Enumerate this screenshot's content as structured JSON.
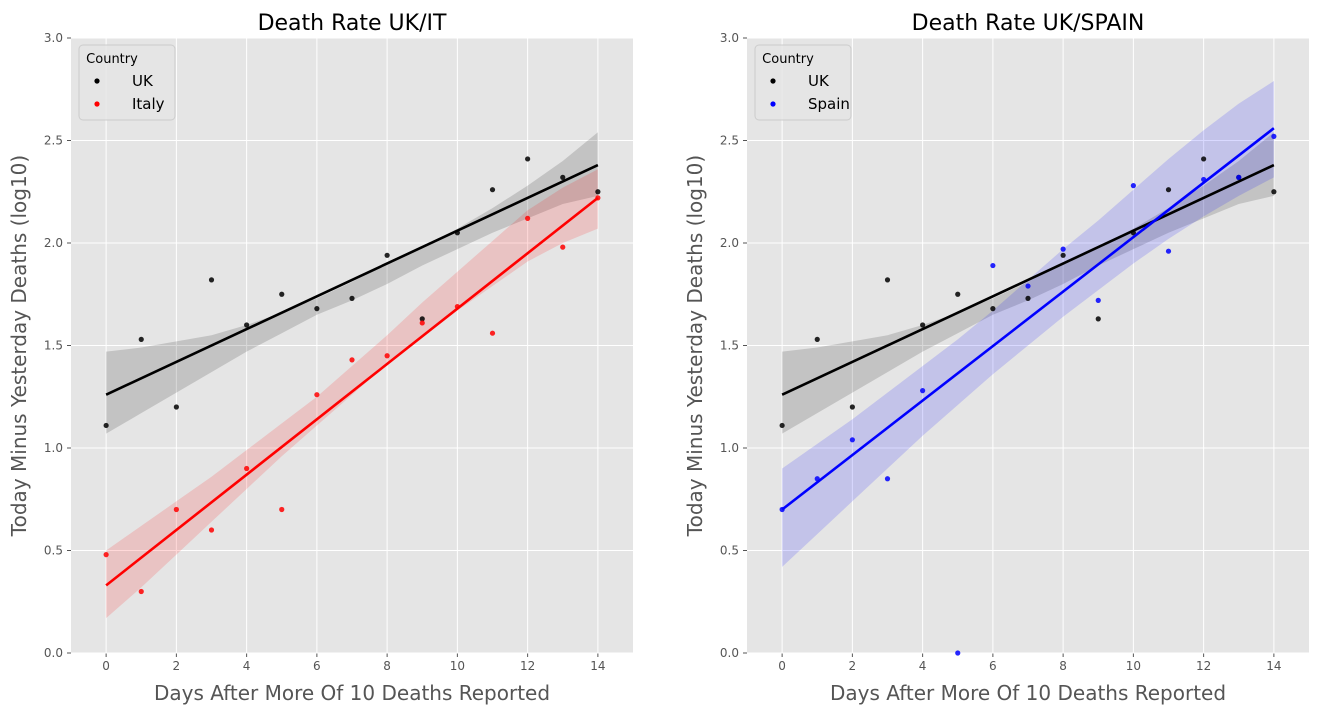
{
  "chart_data": [
    {
      "type": "scatter",
      "title": "Death Rate UK/IT",
      "xlabel": "Days After More Of 10 Deaths Reported",
      "ylabel": "Today Minus Yesterday Deaths (log10)",
      "xlim": [
        -1,
        15
      ],
      "ylim": [
        0,
        3
      ],
      "xticks": [
        "0",
        "2",
        "4",
        "6",
        "8",
        "10",
        "12",
        "14"
      ],
      "yticks": [
        "0.0",
        "0.5",
        "1.0",
        "1.5",
        "2.0",
        "2.5",
        "3.0"
      ],
      "grid": true,
      "legend": {
        "title": "Country",
        "position": "top-left"
      },
      "series": [
        {
          "name": "UK",
          "color": "#000000",
          "band_color": "#000000",
          "x": [
            0,
            1,
            2,
            3,
            4,
            5,
            6,
            7,
            8,
            9,
            10,
            11,
            12,
            13,
            14
          ],
          "y": [
            1.11,
            1.53,
            1.2,
            1.82,
            1.6,
            1.75,
            1.68,
            1.73,
            1.94,
            1.63,
            2.05,
            2.26,
            2.41,
            2.32,
            2.25
          ],
          "fit": {
            "start": 1.26,
            "end": 2.38
          },
          "band_lower": [
            1.07,
            1.17,
            1.27,
            1.37,
            1.47,
            1.56,
            1.65,
            1.72,
            1.8,
            1.89,
            1.97,
            2.05,
            2.12,
            2.19,
            2.23
          ],
          "band_upper": [
            1.47,
            1.49,
            1.52,
            1.55,
            1.6,
            1.66,
            1.73,
            1.81,
            1.9,
            1.98,
            2.07,
            2.17,
            2.28,
            2.4,
            2.54
          ]
        },
        {
          "name": "Italy",
          "color": "#ff0000",
          "band_color": "#ff0000",
          "x": [
            0,
            1,
            2,
            3,
            4,
            5,
            6,
            7,
            8,
            9,
            10,
            11,
            12,
            13,
            14
          ],
          "y": [
            0.48,
            0.3,
            0.7,
            0.6,
            0.9,
            0.7,
            1.26,
            1.43,
            1.45,
            1.61,
            1.69,
            1.56,
            2.12,
            1.98,
            2.22
          ],
          "fit": {
            "start": 0.33,
            "end": 2.22
          },
          "band_lower": [
            0.17,
            0.32,
            0.48,
            0.64,
            0.8,
            0.96,
            1.11,
            1.26,
            1.41,
            1.54,
            1.67,
            1.79,
            1.91,
            2.0,
            2.07
          ],
          "band_upper": [
            0.5,
            0.62,
            0.74,
            0.86,
            0.99,
            1.12,
            1.25,
            1.4,
            1.55,
            1.71,
            1.86,
            2.01,
            2.16,
            2.27,
            2.36
          ]
        }
      ]
    },
    {
      "type": "scatter",
      "title": "Death Rate UK/SPAIN",
      "xlabel": "Days After More Of 10 Deaths Reported",
      "ylabel": "Today Minus Yesterday Deaths (log10)",
      "xlim": [
        -1,
        15
      ],
      "ylim": [
        0,
        3
      ],
      "xticks": [
        "0",
        "2",
        "4",
        "6",
        "8",
        "10",
        "12",
        "14"
      ],
      "yticks": [
        "0.0",
        "0.5",
        "1.0",
        "1.5",
        "2.0",
        "2.5",
        "3.0"
      ],
      "grid": true,
      "legend": {
        "title": "Country",
        "position": "top-left"
      },
      "series": [
        {
          "name": "UK",
          "color": "#000000",
          "band_color": "#000000",
          "x": [
            0,
            1,
            2,
            3,
            4,
            5,
            6,
            7,
            8,
            9,
            10,
            11,
            12,
            13,
            14
          ],
          "y": [
            1.11,
            1.53,
            1.2,
            1.82,
            1.6,
            1.75,
            1.68,
            1.73,
            1.94,
            1.63,
            2.05,
            2.26,
            2.41,
            2.32,
            2.25
          ],
          "fit": {
            "start": 1.26,
            "end": 2.38
          },
          "band_lower": [
            1.07,
            1.17,
            1.27,
            1.37,
            1.47,
            1.56,
            1.65,
            1.72,
            1.8,
            1.89,
            1.97,
            2.05,
            2.12,
            2.19,
            2.23
          ],
          "band_upper": [
            1.47,
            1.49,
            1.52,
            1.55,
            1.6,
            1.66,
            1.73,
            1.81,
            1.9,
            1.98,
            2.07,
            2.17,
            2.28,
            2.4,
            2.54
          ]
        },
        {
          "name": "Spain",
          "color": "#0000ff",
          "band_color": "#0000ff",
          "x": [
            0,
            1,
            2,
            3,
            4,
            5,
            6,
            7,
            8,
            9,
            10,
            11,
            12,
            13,
            14
          ],
          "y": [
            0.7,
            0.85,
            1.04,
            0.85,
            1.28,
            0.0,
            1.89,
            1.79,
            1.97,
            1.72,
            2.28,
            1.96,
            2.31,
            2.32,
            2.52
          ],
          "fit": {
            "start": 0.7,
            "end": 2.56
          },
          "band_lower": [
            0.42,
            0.58,
            0.74,
            0.9,
            1.06,
            1.21,
            1.36,
            1.5,
            1.64,
            1.77,
            1.9,
            2.02,
            2.13,
            2.23,
            2.32
          ],
          "band_upper": [
            0.9,
            1.02,
            1.14,
            1.27,
            1.4,
            1.53,
            1.67,
            1.82,
            1.97,
            2.11,
            2.26,
            2.41,
            2.55,
            2.68,
            2.79
          ]
        }
      ]
    }
  ]
}
